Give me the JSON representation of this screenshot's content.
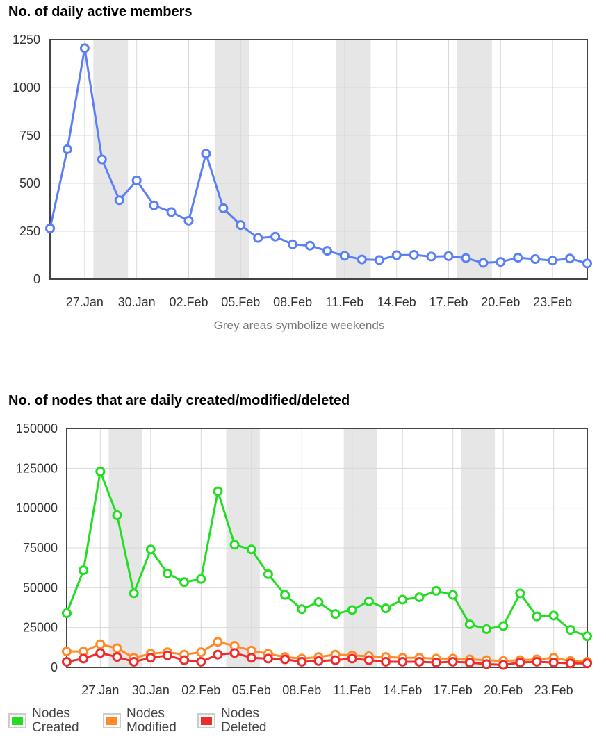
{
  "chart_data": [
    {
      "type": "line",
      "title": "No. of daily active members",
      "xlabel": "Grey areas symbolize weekends",
      "ylabel": "",
      "x": [
        "25.Jan",
        "26.Jan",
        "27.Jan",
        "28.Jan",
        "29.Jan",
        "30.Jan",
        "31.Jan",
        "01.Feb",
        "02.Feb",
        "03.Feb",
        "04.Feb",
        "05.Feb",
        "06.Feb",
        "07.Feb",
        "08.Feb",
        "09.Feb",
        "10.Feb",
        "11.Feb",
        "12.Feb",
        "13.Feb",
        "14.Feb",
        "15.Feb",
        "16.Feb",
        "17.Feb",
        "18.Feb",
        "19.Feb",
        "20.Feb",
        "21.Feb",
        "22.Feb",
        "23.Feb",
        "24.Feb",
        "25.Feb"
      ],
      "xticks": [
        "27.Jan",
        "30.Jan",
        "02.Feb",
        "05.Feb",
        "08.Feb",
        "11.Feb",
        "14.Feb",
        "17.Feb",
        "20.Feb",
        "23.Feb"
      ],
      "yticks": [
        "0",
        "250",
        "500",
        "750",
        "1000",
        "1250"
      ],
      "ylim": [
        0,
        1250
      ],
      "weekends": [
        [
          "28.Jan",
          "29.Jan"
        ],
        [
          "04.Feb",
          "05.Feb"
        ],
        [
          "11.Feb",
          "12.Feb"
        ],
        [
          "18.Feb",
          "19.Feb"
        ]
      ],
      "grid": true,
      "series": [
        {
          "color": "#5b7ff5",
          "values": [
            265,
            678,
            1205,
            625,
            412,
            515,
            385,
            350,
            305,
            655,
            370,
            282,
            215,
            222,
            182,
            175,
            148,
            122,
            103,
            100,
            125,
            127,
            118,
            120,
            110,
            85,
            90,
            112,
            105,
            97,
            108,
            82
          ]
        }
      ]
    },
    {
      "type": "line",
      "title": "No. of nodes that are daily created/modified/deleted",
      "xlabel": "",
      "ylabel": "",
      "x": [
        "25.Jan",
        "26.Jan",
        "27.Jan",
        "28.Jan",
        "29.Jan",
        "30.Jan",
        "31.Jan",
        "01.Feb",
        "02.Feb",
        "03.Feb",
        "04.Feb",
        "05.Feb",
        "06.Feb",
        "07.Feb",
        "08.Feb",
        "09.Feb",
        "10.Feb",
        "11.Feb",
        "12.Feb",
        "13.Feb",
        "14.Feb",
        "15.Feb",
        "16.Feb",
        "17.Feb",
        "18.Feb",
        "19.Feb",
        "20.Feb",
        "21.Feb",
        "22.Feb",
        "23.Feb",
        "24.Feb",
        "25.Feb"
      ],
      "xticks": [
        "27.Jan",
        "30.Jan",
        "02.Feb",
        "05.Feb",
        "08.Feb",
        "11.Feb",
        "14.Feb",
        "17.Feb",
        "20.Feb",
        "23.Feb"
      ],
      "yticks": [
        "0",
        "25000",
        "50000",
        "75000",
        "100000",
        "125000",
        "150000"
      ],
      "ylim": [
        0,
        150000
      ],
      "weekends": [
        [
          "28.Jan",
          "29.Jan"
        ],
        [
          "04.Feb",
          "05.Feb"
        ],
        [
          "11.Feb",
          "12.Feb"
        ],
        [
          "18.Feb",
          "19.Feb"
        ]
      ],
      "grid": true,
      "legend_position": "bottom-left",
      "series": [
        {
          "name": "Nodes Created",
          "color": "#22dd22",
          "values": [
            34000,
            61000,
            123000,
            95500,
            46500,
            74000,
            59000,
            53500,
            55500,
            110500,
            77000,
            74000,
            58500,
            45500,
            36500,
            41000,
            33500,
            36000,
            41500,
            37000,
            42500,
            44000,
            48000,
            45500,
            27000,
            24000,
            26000,
            46500,
            32000,
            32500,
            23500,
            19500
          ]
        },
        {
          "name": "Nodes Modified",
          "color": "#ff8a2a",
          "values": [
            10000,
            10000,
            14500,
            12000,
            6000,
            8500,
            9500,
            8000,
            9500,
            16000,
            13500,
            10500,
            8500,
            6500,
            5500,
            6500,
            8000,
            7500,
            7000,
            6500,
            6000,
            6000,
            5500,
            5500,
            5000,
            4500,
            4000,
            4500,
            5000,
            6000,
            4000,
            3500
          ]
        },
        {
          "name": "Nodes Deleted",
          "color": "#ee2c2c",
          "values": [
            3500,
            5500,
            9000,
            6500,
            3500,
            6000,
            7500,
            4500,
            3500,
            8000,
            9000,
            6000,
            5500,
            5000,
            3500,
            4000,
            4500,
            5500,
            4500,
            3500,
            3500,
            3500,
            3000,
            3500,
            3000,
            2000,
            1500,
            3000,
            3500,
            3000,
            2500,
            2500
          ]
        }
      ]
    }
  ]
}
